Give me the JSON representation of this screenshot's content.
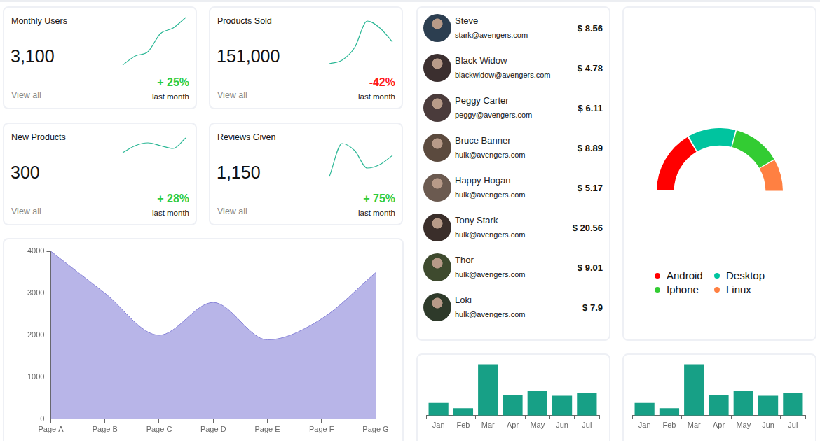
{
  "cards": [
    {
      "title": "Monthly Users",
      "value": "3,100",
      "change": "+ 25%",
      "change_color": "#2ecc40",
      "period": "last month",
      "link": "View all"
    },
    {
      "title": "Products Sold",
      "value": "151,000",
      "change": "-42%",
      "change_color": "#ff1a1a",
      "period": "last month",
      "link": "View all"
    },
    {
      "title": "New Products",
      "value": "300",
      "change": "+ 28%",
      "change_color": "#2ecc40",
      "period": "last month",
      "link": "View all"
    },
    {
      "title": "Reviews Given",
      "value": "1,150",
      "change": "+ 75%",
      "change_color": "#2ecc40",
      "period": "last month",
      "link": "View all"
    }
  ],
  "users": [
    {
      "name": "Steve",
      "email": "stark@avengers.com",
      "amount": "$ 8.56"
    },
    {
      "name": "Black Widow",
      "email": "blackwidow@avengers.com",
      "amount": "$ 4.78"
    },
    {
      "name": "Peggy Carter",
      "email": "peggy@avengers.com",
      "amount": "$ 6.11"
    },
    {
      "name": "Bruce Banner",
      "email": "hulk@avengers.com",
      "amount": "$ 8.89"
    },
    {
      "name": "Happy Hogan",
      "email": "hulk@avengers.com",
      "amount": "$ 5.17"
    },
    {
      "name": "Tony Stark",
      "email": "hulk@avengers.com",
      "amount": "$ 20.56"
    },
    {
      "name": "Thor",
      "email": "hulk@avengers.com",
      "amount": "$ 9.01"
    },
    {
      "name": "Loki",
      "email": "hulk@avengers.com",
      "amount": "$ 7.9"
    }
  ],
  "chart_data": [
    {
      "type": "line",
      "values": [
        7,
        20,
        26,
        52,
        60,
        75
      ],
      "color": "#2ab795",
      "ylim": [
        0,
        80
      ],
      "tick_labels": false
    },
    {
      "type": "line",
      "values": [
        9,
        14,
        32,
        70,
        60,
        40
      ],
      "color": "#2ab795",
      "ylim": [
        0,
        80
      ],
      "tick_labels": false
    },
    {
      "type": "line",
      "values": [
        7,
        17,
        21,
        17,
        13,
        28
      ],
      "color": "#2ab795",
      "ylim": [
        0,
        30
      ],
      "tick_labels": false
    },
    {
      "type": "line",
      "values": [
        8,
        55,
        45,
        20,
        25,
        38
      ],
      "color": "#2ab795",
      "ylim": [
        0,
        60
      ],
      "tick_labels": false
    },
    {
      "type": "area",
      "categories": [
        "Page A",
        "Page B",
        "Page C",
        "Page D",
        "Page E",
        "Page F",
        "Page G"
      ],
      "values": [
        4000,
        3000,
        2000,
        2780,
        1890,
        2390,
        3490
      ],
      "color": "#8884d8",
      "ylim": [
        0,
        4000
      ],
      "yticks": [
        0,
        1000,
        2000,
        3000,
        4000
      ],
      "grid": false
    },
    {
      "type": "doughnut",
      "categories": [
        "Android",
        "Desktop",
        "Iphone",
        "Linux"
      ],
      "values": [
        400,
        300,
        300,
        200
      ],
      "colors": [
        "#ff0000",
        "#00c49f",
        "#33cc33",
        "#ff8042"
      ],
      "legend": "bottom"
    },
    {
      "type": "bar",
      "categories": [
        "Jan",
        "Feb",
        "Mar",
        "Apr",
        "May",
        "Jun",
        "Jul"
      ],
      "values": [
        2400,
        1398,
        9800,
        3908,
        4800,
        3800,
        4300
      ],
      "color": "#17a086",
      "ylim": [
        0,
        10000
      ],
      "tick_labels": "x",
      "grid": false
    },
    {
      "type": "bar",
      "categories": [
        "Jan",
        "Feb",
        "Mar",
        "Apr",
        "May",
        "Jun",
        "Jul"
      ],
      "values": [
        2400,
        1398,
        9800,
        3908,
        4800,
        3800,
        4300
      ],
      "color": "#17a086",
      "ylim": [
        0,
        10000
      ],
      "tick_labels": "x",
      "grid": false
    }
  ]
}
